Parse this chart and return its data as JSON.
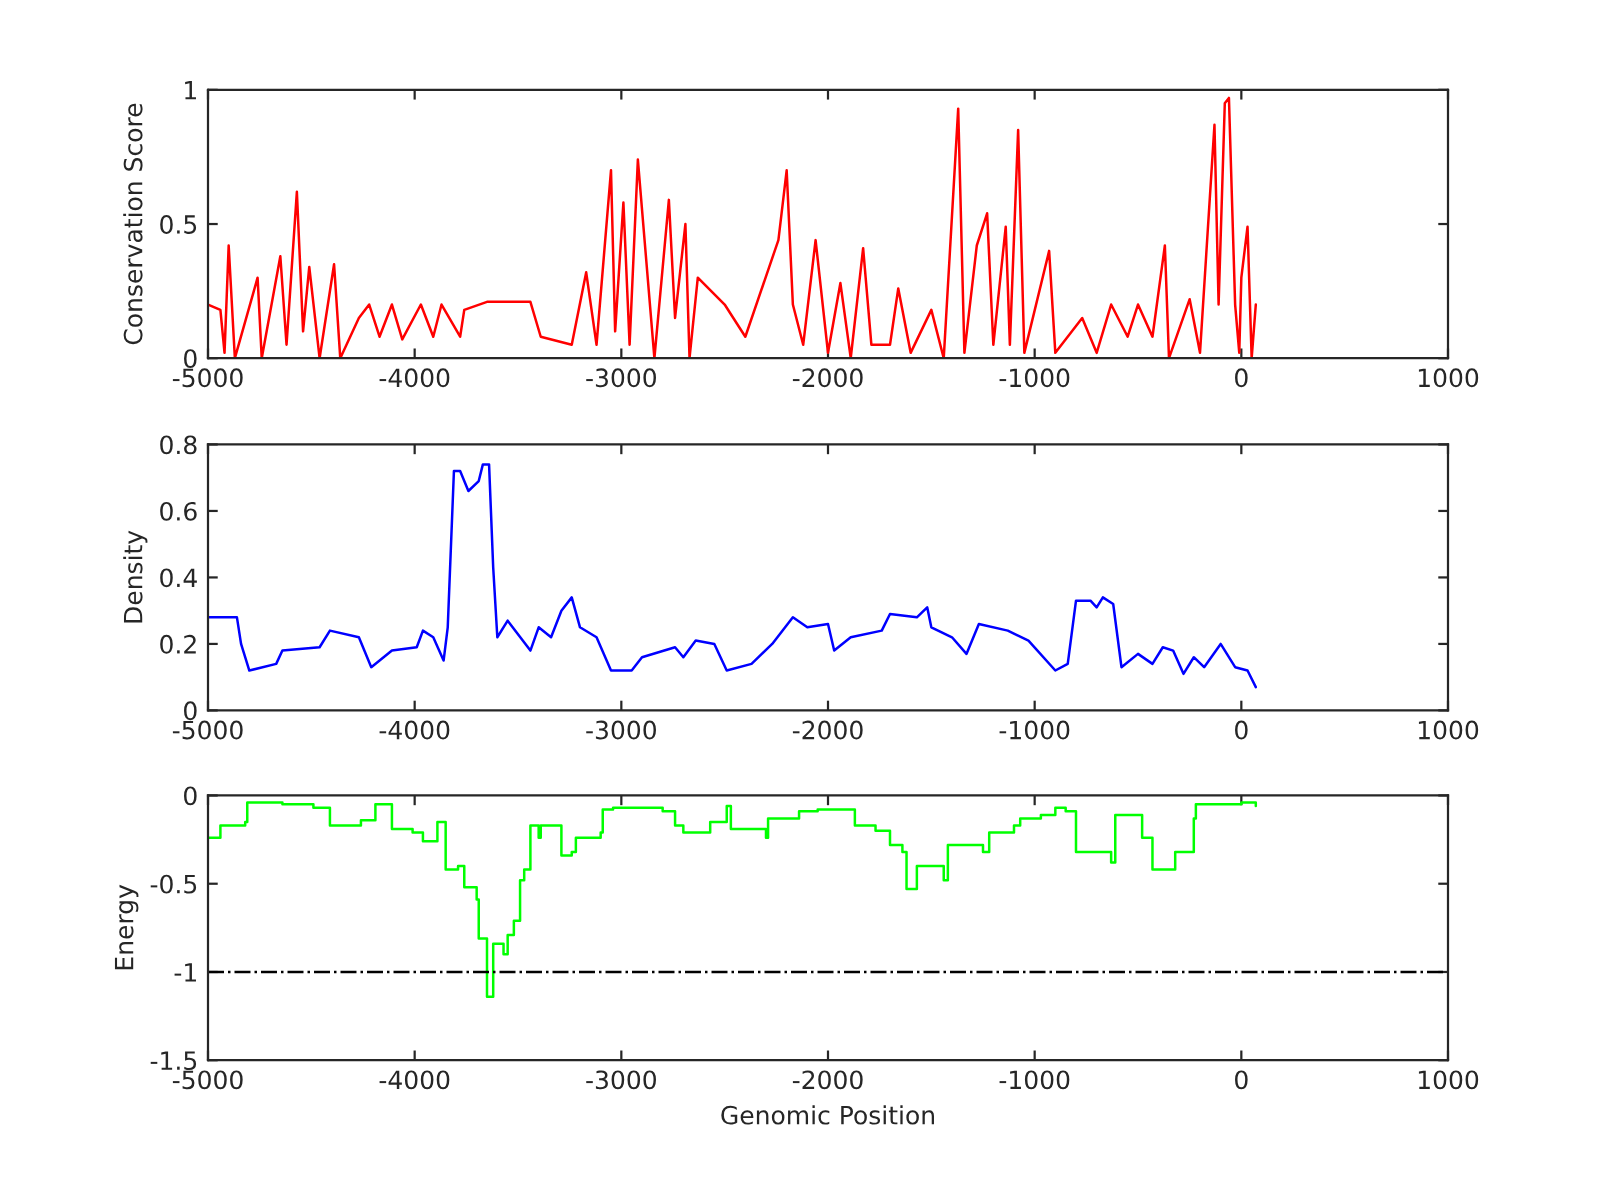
{
  "chart_data": [
    {
      "type": "line",
      "ylabel": "Conservation Score",
      "xlim": [
        -5000,
        1000
      ],
      "xticks": [
        -5000,
        -4000,
        -3000,
        -2000,
        -1000,
        0,
        1000
      ],
      "ylim": [
        0,
        1
      ],
      "yticks": [
        0,
        0.5,
        1
      ],
      "grid": false,
      "legend": false,
      "series": [
        {
          "color": "#ff0000",
          "x": [
            -5000,
            -4940,
            -4920,
            -4900,
            -4870,
            -4760,
            -4740,
            -4650,
            -4620,
            -4570,
            -4540,
            -4510,
            -4460,
            -4390,
            -4360,
            -4270,
            -4220,
            -4170,
            -4110,
            -4060,
            -3970,
            -3910,
            -3870,
            -3780,
            -3760,
            -3650,
            -3440,
            -3390,
            -3240,
            -3170,
            -3120,
            -3050,
            -3030,
            -2990,
            -2960,
            -2920,
            -2840,
            -2770,
            -2740,
            -2690,
            -2670,
            -2630,
            -2500,
            -2400,
            -2240,
            -2200,
            -2170,
            -2120,
            -2060,
            -2000,
            -1940,
            -1890,
            -1830,
            -1790,
            -1700,
            -1660,
            -1600,
            -1500,
            -1440,
            -1370,
            -1340,
            -1280,
            -1230,
            -1200,
            -1140,
            -1120,
            -1080,
            -1050,
            -930,
            -900,
            -770,
            -700,
            -630,
            -550,
            -500,
            -430,
            -370,
            -350,
            -250,
            -200,
            -130,
            -110,
            -80,
            -60,
            -30,
            -10,
            0,
            30,
            50,
            70
          ],
          "values": [
            0.2,
            0.18,
            0.02,
            0.42,
            0.0,
            0.3,
            0.0,
            0.38,
            0.05,
            0.62,
            0.1,
            0.34,
            0.0,
            0.35,
            0.0,
            0.15,
            0.2,
            0.08,
            0.2,
            0.07,
            0.2,
            0.08,
            0.2,
            0.08,
            0.18,
            0.21,
            0.21,
            0.08,
            0.05,
            0.32,
            0.05,
            0.7,
            0.1,
            0.58,
            0.05,
            0.74,
            0.0,
            0.59,
            0.15,
            0.5,
            0.0,
            0.3,
            0.2,
            0.08,
            0.44,
            0.7,
            0.2,
            0.05,
            0.44,
            0.02,
            0.28,
            0.0,
            0.41,
            0.05,
            0.05,
            0.26,
            0.02,
            0.18,
            0.0,
            0.93,
            0.02,
            0.42,
            0.54,
            0.05,
            0.49,
            0.05,
            0.85,
            0.02,
            0.4,
            0.02,
            0.15,
            0.02,
            0.2,
            0.08,
            0.2,
            0.08,
            0.42,
            0.0,
            0.22,
            0.02,
            0.87,
            0.2,
            0.95,
            0.97,
            0.2,
            0.02,
            0.3,
            0.49,
            0.0,
            0.2
          ]
        }
      ]
    },
    {
      "type": "line",
      "ylabel": "Density",
      "xlim": [
        -5000,
        1000
      ],
      "xticks": [
        -5000,
        -4000,
        -3000,
        -2000,
        -1000,
        0,
        1000
      ],
      "ylim": [
        0,
        0.8
      ],
      "yticks": [
        0,
        0.2,
        0.4,
        0.6,
        0.8
      ],
      "grid": false,
      "legend": false,
      "series": [
        {
          "color": "#0000ff",
          "x": [
            -5000,
            -4860,
            -4840,
            -4800,
            -4670,
            -4640,
            -4460,
            -4410,
            -4270,
            -4210,
            -4110,
            -3990,
            -3960,
            -3910,
            -3860,
            -3840,
            -3810,
            -3780,
            -3740,
            -3690,
            -3670,
            -3640,
            -3620,
            -3600,
            -3550,
            -3440,
            -3400,
            -3340,
            -3290,
            -3240,
            -3200,
            -3120,
            -3050,
            -2950,
            -2900,
            -2740,
            -2700,
            -2640,
            -2550,
            -2490,
            -2370,
            -2270,
            -2170,
            -2100,
            -2000,
            -1970,
            -1890,
            -1740,
            -1700,
            -1570,
            -1520,
            -1500,
            -1400,
            -1330,
            -1270,
            -1130,
            -1030,
            -900,
            -840,
            -800,
            -730,
            -700,
            -670,
            -620,
            -580,
            -500,
            -430,
            -380,
            -330,
            -280,
            -230,
            -180,
            -100,
            -30,
            30,
            70
          ],
          "values": [
            0.28,
            0.28,
            0.2,
            0.12,
            0.14,
            0.18,
            0.19,
            0.24,
            0.22,
            0.13,
            0.18,
            0.19,
            0.24,
            0.22,
            0.15,
            0.25,
            0.72,
            0.72,
            0.66,
            0.69,
            0.74,
            0.74,
            0.43,
            0.22,
            0.27,
            0.18,
            0.25,
            0.22,
            0.3,
            0.34,
            0.25,
            0.22,
            0.12,
            0.12,
            0.16,
            0.19,
            0.16,
            0.21,
            0.2,
            0.12,
            0.14,
            0.2,
            0.28,
            0.25,
            0.26,
            0.18,
            0.22,
            0.24,
            0.29,
            0.28,
            0.31,
            0.25,
            0.22,
            0.17,
            0.26,
            0.24,
            0.21,
            0.12,
            0.14,
            0.33,
            0.33,
            0.31,
            0.34,
            0.32,
            0.13,
            0.17,
            0.14,
            0.19,
            0.18,
            0.11,
            0.16,
            0.13,
            0.2,
            0.13,
            0.12,
            0.07
          ]
        }
      ]
    },
    {
      "type": "step",
      "ylabel": "Energy",
      "xlabel": "Genomic Position",
      "xlim": [
        -5000,
        1000
      ],
      "xticks": [
        -5000,
        -4000,
        -3000,
        -2000,
        -1000,
        0,
        1000
      ],
      "ylim": [
        -1.5,
        0
      ],
      "yticks": [
        -1.5,
        -1,
        -0.5,
        0
      ],
      "grid": false,
      "legend": false,
      "ref_lines": [
        {
          "axis": "y",
          "value": -1,
          "color": "#000000",
          "line_style": "dashdot"
        }
      ],
      "series": [
        {
          "color": "#00ff00",
          "x": [
            -5000,
            -4940,
            -4820,
            -4810,
            -4640,
            -4490,
            -4410,
            -4260,
            -4190,
            -4110,
            -4010,
            -3960,
            -3890,
            -3850,
            -3850,
            -3790,
            -3760,
            -3700,
            -3690,
            -3650,
            -3650,
            -3620,
            -3570,
            -3550,
            -3520,
            -3490,
            -3470,
            -3440,
            -3400,
            -3390,
            -3300,
            -3290,
            -3240,
            -3220,
            -3100,
            -3090,
            -3040,
            -2900,
            -2800,
            -2740,
            -2700,
            -2570,
            -2490,
            -2470,
            -2300,
            -2290,
            -2140,
            -2050,
            -1870,
            -1770,
            -1700,
            -1640,
            -1620,
            -1570,
            -1500,
            -1440,
            -1420,
            -1300,
            -1250,
            -1220,
            -1100,
            -1070,
            -970,
            -900,
            -850,
            -800,
            -670,
            -630,
            -610,
            -530,
            -480,
            -430,
            -330,
            -320,
            -230,
            -220,
            -130,
            0,
            70
          ],
          "values": [
            -0.24,
            -0.17,
            -0.15,
            -0.04,
            -0.05,
            -0.07,
            -0.17,
            -0.14,
            -0.05,
            -0.19,
            -0.21,
            -0.26,
            -0.15,
            -0.15,
            -0.42,
            -0.4,
            -0.52,
            -0.59,
            -0.81,
            -0.84,
            -1.14,
            -0.84,
            -0.9,
            -0.79,
            -0.71,
            -0.48,
            -0.42,
            -0.17,
            -0.24,
            -0.17,
            -0.17,
            -0.34,
            -0.32,
            -0.24,
            -0.21,
            -0.08,
            -0.07,
            -0.07,
            -0.09,
            -0.17,
            -0.21,
            -0.15,
            -0.06,
            -0.19,
            -0.24,
            -0.13,
            -0.09,
            -0.08,
            -0.17,
            -0.2,
            -0.28,
            -0.32,
            -0.53,
            -0.4,
            -0.4,
            -0.48,
            -0.28,
            -0.28,
            -0.32,
            -0.21,
            -0.17,
            -0.13,
            -0.11,
            -0.07,
            -0.09,
            -0.32,
            -0.32,
            -0.38,
            -0.11,
            -0.11,
            -0.24,
            -0.42,
            -0.42,
            -0.32,
            -0.13,
            -0.05,
            -0.05,
            -0.04,
            -0.06
          ]
        }
      ]
    }
  ]
}
